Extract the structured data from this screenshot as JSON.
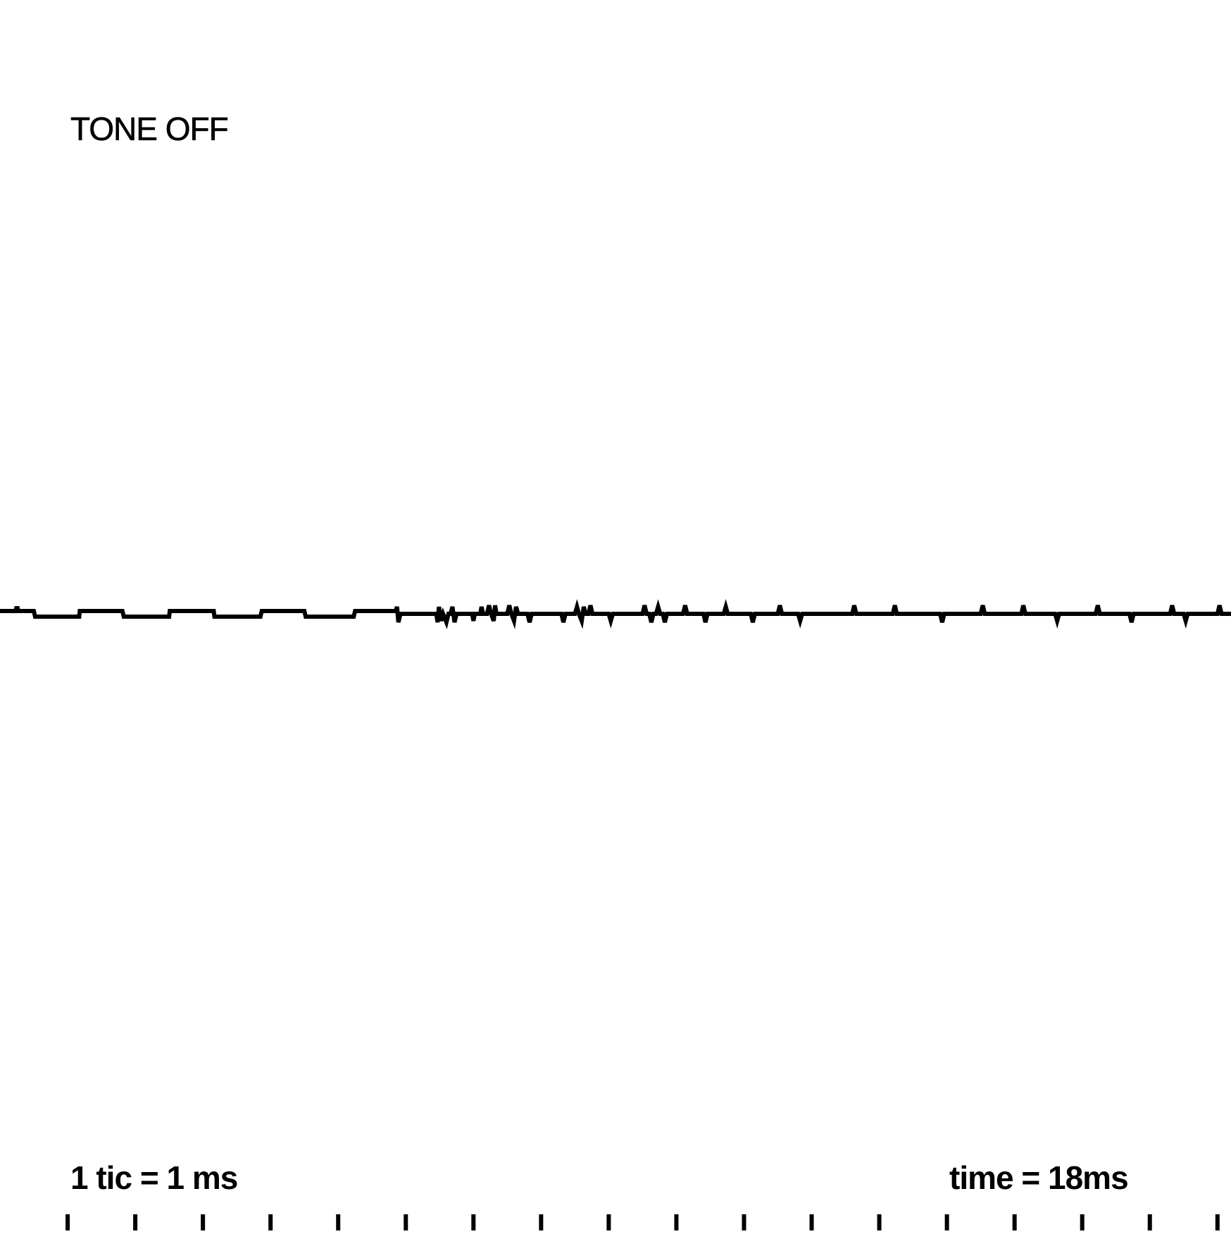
{
  "status": "TONE OFF",
  "scale_label": "1 tic = 1 ms",
  "time_label": "time = 18ms",
  "colors": {
    "background": "#ffffff",
    "trace": "#000000"
  },
  "chart_data": {
    "type": "line",
    "title": "",
    "xlabel": "",
    "ylabel": "",
    "xlim": [
      0,
      18.2
    ],
    "ylim": [
      -1,
      1
    ],
    "grid": false,
    "tick_interval_ms": 1,
    "series": [
      {
        "x": [
          0.0,
          0.23,
          0.24,
          0.26,
          0.27,
          0.5,
          0.52,
          1.17,
          1.18,
          1.81,
          1.83,
          2.5,
          2.51,
          3.16,
          3.17,
          3.85,
          3.87,
          4.5,
          4.52,
          5.23,
          5.25,
          5.85,
          5.87,
          5.89,
          5.92,
          6.45,
          6.47,
          6.49,
          6.52,
          6.55,
          6.6,
          6.63,
          6.66,
          6.69,
          6.72,
          6.75,
          6.8,
          6.98,
          7.0,
          7.02,
          7.1,
          7.12,
          7.14,
          7.2,
          7.23,
          7.26,
          7.3,
          7.32,
          7.34,
          7.5,
          7.53,
          7.56,
          7.6,
          7.63,
          7.66,
          7.8,
          7.83,
          7.86,
          8.3,
          8.33,
          8.36,
          8.5,
          8.53,
          8.56,
          8.6,
          8.63,
          8.66,
          8.7,
          8.73,
          8.76,
          9.0,
          9.03,
          9.06,
          9.5,
          9.53,
          9.56,
          9.6,
          9.63,
          9.66,
          9.7,
          9.73,
          9.76,
          9.8,
          9.83,
          9.86,
          10.1,
          10.13,
          10.16,
          10.4,
          10.43,
          10.46,
          10.7,
          10.73,
          10.76,
          11.1,
          11.13,
          11.16,
          11.5,
          11.53,
          11.56,
          11.8,
          11.83,
          11.86,
          12.6,
          12.63,
          12.66,
          13.2,
          13.23,
          13.26,
          13.9,
          13.93,
          13.96,
          14.5,
          14.53,
          14.56,
          15.1,
          15.13,
          15.16,
          15.6,
          15.63,
          15.66,
          16.2,
          16.23,
          16.26,
          16.7,
          16.73,
          16.76,
          17.3,
          17.33,
          17.36,
          17.5,
          17.53,
          17.56,
          18.0,
          18.03,
          18.06,
          18.2
        ],
        "y": [
          0.04,
          0.04,
          0.08,
          0.08,
          0.04,
          0.04,
          -0.04,
          -0.04,
          0.04,
          0.04,
          -0.04,
          -0.04,
          0.04,
          0.04,
          -0.04,
          -0.04,
          0.04,
          0.04,
          -0.04,
          -0.04,
          0.04,
          0.04,
          0.1,
          -0.12,
          0.0,
          0.0,
          -0.12,
          0.1,
          -0.1,
          0.0,
          -0.12,
          0.0,
          0.0,
          0.1,
          -0.12,
          0.0,
          0.0,
          0.0,
          -0.1,
          0.0,
          0.0,
          0.1,
          0.0,
          0.0,
          0.12,
          0.0,
          -0.1,
          0.12,
          0.0,
          0.0,
          0.12,
          0.0,
          -0.1,
          0.1,
          0.0,
          0.0,
          -0.12,
          0.0,
          0.0,
          -0.12,
          0.0,
          0.0,
          0.1,
          0.0,
          -0.1,
          0.1,
          0.0,
          0.0,
          0.12,
          0.0,
          0.0,
          -0.1,
          0.0,
          0.0,
          0.12,
          0.0,
          0.0,
          -0.12,
          0.0,
          0.0,
          0.1,
          0.0,
          0.0,
          -0.12,
          0.0,
          0.0,
          0.12,
          0.0,
          0.0,
          -0.12,
          0.0,
          0.0,
          0.1,
          0.0,
          0.0,
          -0.12,
          0.0,
          0.0,
          0.12,
          0.0,
          0.0,
          -0.1,
          0.0,
          0.0,
          0.12,
          0.0,
          0.0,
          0.12,
          0.0,
          0.0,
          -0.12,
          0.0,
          0.0,
          0.12,
          0.0,
          0.0,
          0.12,
          0.0,
          0.0,
          -0.1,
          0.0,
          0.0,
          0.12,
          0.0,
          0.0,
          -0.12,
          0.0,
          0.0,
          0.12,
          0.0,
          0.0,
          -0.1,
          0.0,
          0.0,
          0.12,
          0.0,
          0.0
        ]
      }
    ]
  }
}
